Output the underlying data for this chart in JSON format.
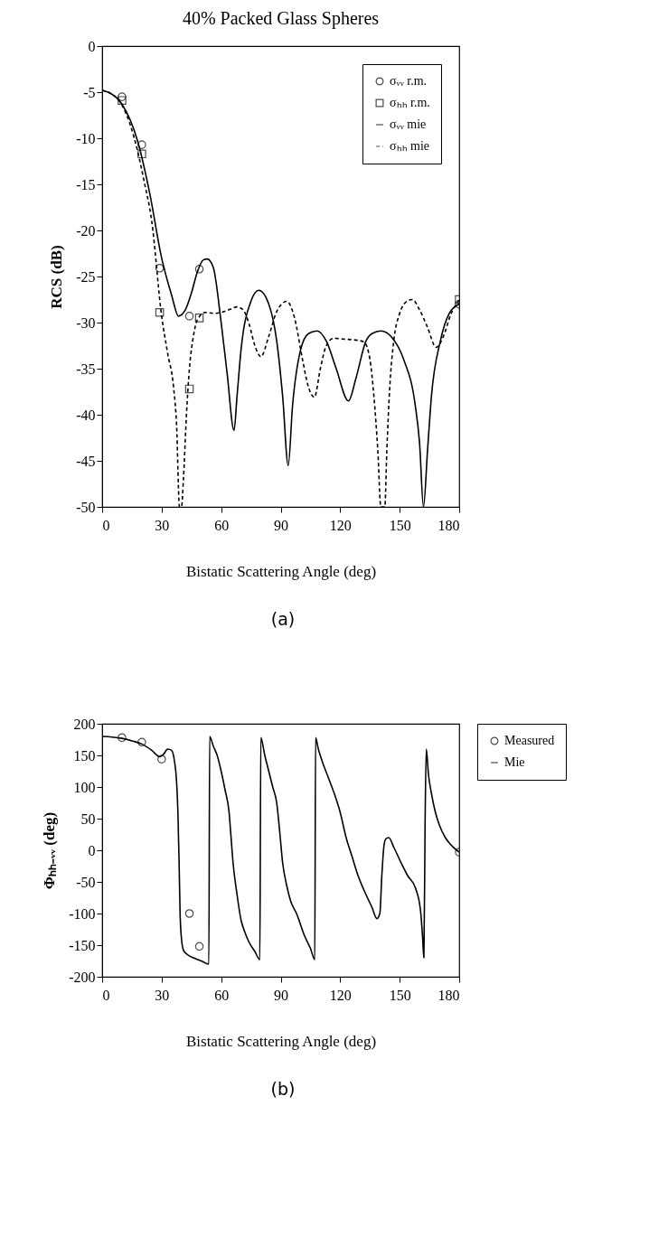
{
  "chart_data": [
    {
      "type": "line",
      "title": "40% Packed Glass Spheres",
      "xlabel": "Bistatic Scattering Angle (deg)",
      "ylabel": "RCS  (dB)",
      "annotations": [
        "(a)"
      ],
      "xlim": [
        0,
        180
      ],
      "xticks": [
        0,
        30,
        60,
        90,
        120,
        150,
        180
      ],
      "ylim": [
        -50,
        0
      ],
      "yticks": [
        -50,
        -45,
        -40,
        -35,
        -30,
        -25,
        -20,
        -15,
        -10,
        -5,
        0
      ],
      "grid": false,
      "legend": "top right",
      "series": [
        {
          "name": "σᵥᵥ r.m.",
          "type": "scatter",
          "marker": "circle",
          "color": "#000000",
          "x": [
            10,
            20,
            29,
            44,
            49,
            180
          ],
          "values": [
            -5.5,
            -10.7,
            -24.1,
            -29.3,
            -24.2,
            -28
          ]
        },
        {
          "name": "σₕₕ r.m.",
          "type": "scatter",
          "marker": "square",
          "color": "#000000",
          "x": [
            10,
            20,
            29,
            44,
            49,
            180
          ],
          "values": [
            -5.9,
            -11.7,
            -28.9,
            -37.2,
            -29.5,
            -27.5
          ]
        },
        {
          "name": "σᵥᵥ mie",
          "line_style": "solid",
          "color": "#000000",
          "x": [
            0,
            4,
            10,
            18,
            24,
            30,
            35,
            38.5,
            42,
            45,
            48,
            51,
            53,
            56,
            60,
            63,
            66.5,
            68,
            70,
            75,
            79,
            84,
            88,
            91,
            93.8,
            96,
            100,
            104,
            108.4,
            113,
            118,
            124.2,
            128,
            133,
            136,
            140.6,
            146,
            152,
            157.8,
            160,
            162,
            164,
            166,
            170.5,
            175,
            180
          ],
          "values": [
            -4.8,
            -5.1,
            -6.3,
            -10.4,
            -16,
            -23,
            -27,
            -29.3,
            -28.6,
            -26.8,
            -24.5,
            -23.2,
            -23.1,
            -24,
            -30,
            -35.5,
            -41.7,
            -38,
            -33,
            -27.7,
            -26.5,
            -28,
            -32,
            -38,
            -45.5,
            -39,
            -33,
            -31.2,
            -30.9,
            -32,
            -35,
            -38.5,
            -36,
            -32,
            -31.2,
            -30.9,
            -31.6,
            -34,
            -38.9,
            -43,
            -50,
            -44,
            -38,
            -32,
            -29,
            -28
          ]
        },
        {
          "name": "σₕₕ mie",
          "line_style": "dashed",
          "color": "#000000",
          "x": [
            0,
            4,
            10,
            18,
            21,
            25,
            30,
            33,
            36,
            37.5,
            39,
            40,
            41,
            42.5,
            44,
            46,
            48,
            52,
            56,
            60,
            64,
            68,
            71,
            74,
            77,
            80,
            84,
            88,
            93.1,
            97,
            101,
            104,
            107,
            110,
            113,
            116.8,
            122,
            128,
            132,
            135,
            137,
            139,
            140.5,
            141.6,
            142.5,
            143.5,
            145,
            147,
            150,
            153,
            156.4,
            160,
            164,
            168.4,
            172,
            176,
            180
          ],
          "values": [
            -4.8,
            -5.1,
            -6.4,
            -11.5,
            -14.5,
            -19,
            -29.3,
            -33.3,
            -37,
            -41,
            -50,
            -50,
            -46.9,
            -40,
            -35,
            -31.5,
            -29.7,
            -28.9,
            -29,
            -28.9,
            -28.6,
            -28.3,
            -28.6,
            -30.1,
            -32.5,
            -33.7,
            -31.5,
            -28.8,
            -27.7,
            -29.5,
            -34,
            -37,
            -38.1,
            -35,
            -32.5,
            -31.7,
            -31.8,
            -31.9,
            -32.1,
            -34,
            -38,
            -44,
            -50,
            -50,
            -50,
            -44,
            -37,
            -32,
            -29,
            -27.8,
            -27.5,
            -28.6,
            -30.5,
            -32.7,
            -31.5,
            -29,
            -27.6
          ]
        }
      ]
    },
    {
      "type": "line",
      "xlabel": "Bistatic Scattering Angle (deg)",
      "ylabel": "Φₕₕ₋ᵥᵥ  (deg)",
      "annotations": [
        "(b)"
      ],
      "xlim": [
        0,
        180
      ],
      "xticks": [
        0,
        30,
        60,
        90,
        120,
        150,
        180
      ],
      "ylim": [
        -200,
        200
      ],
      "yticks": [
        -200,
        -150,
        -100,
        -50,
        0,
        50,
        100,
        150,
        200
      ],
      "grid": false,
      "legend": "right",
      "series": [
        {
          "name": "Measured",
          "type": "scatter",
          "marker": "circle",
          "color": "#000000",
          "x": [
            10,
            20,
            30,
            44,
            49,
            180
          ],
          "values": [
            178,
            171,
            144,
            -100,
            -152,
            -3
          ]
        },
        {
          "name": "Mie",
          "line_style": "solid",
          "color": "#000000",
          "x": [
            0,
            5,
            10,
            15,
            20,
            25,
            29,
            31,
            33,
            35,
            36.5,
            37.5,
            38.2,
            38.8,
            39.3,
            40,
            41,
            43,
            46,
            50,
            53.8,
            54.2,
            56,
            58,
            60,
            62,
            64,
            65,
            66,
            68,
            70,
            72,
            74,
            77,
            79.5,
            80,
            82,
            84,
            86,
            88,
            89.5,
            91,
            93,
            95,
            98,
            102,
            105,
            107.2,
            107.6,
            109,
            111,
            114,
            117,
            120,
            123,
            126,
            129,
            133,
            136,
            138.5,
            140,
            141,
            142,
            143,
            144.5,
            147,
            150,
            154,
            158,
            160.5,
            161.6,
            162.2,
            162.8,
            163.4,
            164.5,
            166,
            168,
            170,
            173,
            176,
            178,
            180
          ],
          "values": [
            180,
            179,
            177,
            173,
            168,
            158,
            148,
            152,
            160,
            158,
            140,
            110,
            60,
            -20,
            -100,
            -140,
            -158,
            -165,
            -170,
            -175,
            -180,
            180,
            165,
            150,
            125,
            95,
            60,
            20,
            -20,
            -70,
            -110,
            -130,
            -145,
            -160,
            -173,
            178,
            150,
            125,
            100,
            75,
            30,
            -20,
            -55,
            -80,
            -100,
            -135,
            -155,
            -173,
            178,
            160,
            140,
            115,
            90,
            60,
            20,
            -10,
            -40,
            -70,
            -90,
            -108,
            -100,
            -40,
            5,
            18,
            20,
            5,
            -15,
            -40,
            -60,
            -95,
            -140,
            -170,
            40,
            160,
            120,
            90,
            60,
            40,
            20,
            8,
            2,
            -3
          ]
        }
      ]
    }
  ]
}
